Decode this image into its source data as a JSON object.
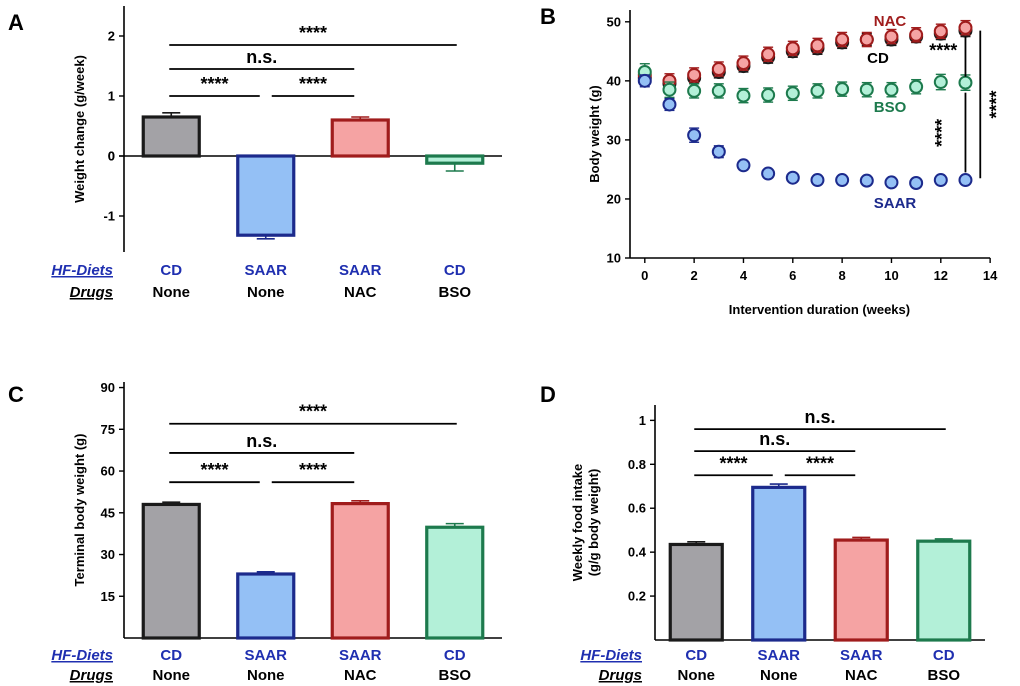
{
  "colors": {
    "CD": {
      "fill": "#a3a2a6",
      "stroke": "#1a1a1a"
    },
    "SAAR": {
      "fill": "#94c0f5",
      "stroke": "#1c2a8c"
    },
    "NAC": {
      "fill": "#f5a3a3",
      "stroke": "#a01c1c"
    },
    "BSO": {
      "fill": "#b3f0d8",
      "stroke": "#1d7a4d"
    },
    "diet_label": "#1f2fb0",
    "label_blue": "#1f2fb0"
  },
  "row_labels": {
    "diets": "HF-Diets",
    "drugs": "Drugs"
  },
  "chart_data": [
    {
      "panel": "A",
      "type": "bar",
      "ylabel": "Weight change (g/week)",
      "ylim": [
        -1.6,
        2.5
      ],
      "yticks": [
        -1,
        0,
        1,
        2
      ],
      "categories": [
        {
          "diet": "CD",
          "drug": "None"
        },
        {
          "diet": "SAAR",
          "drug": "None"
        },
        {
          "diet": "SAAR",
          "drug": "NAC"
        },
        {
          "diet": "CD",
          "drug": "BSO"
        }
      ],
      "values": [
        0.65,
        -1.32,
        0.6,
        -0.12
      ],
      "errors": [
        0.07,
        0.06,
        0.05,
        0.13
      ],
      "groups": [
        "CD",
        "SAAR",
        "NAC",
        "BSO"
      ],
      "significance": [
        {
          "from": 0,
          "to": 3,
          "label": "****",
          "y": 1.85
        },
        {
          "from": 0,
          "to": 2,
          "label": "n.s.",
          "y": 1.45
        },
        {
          "from": 0,
          "to": 1,
          "label": "****",
          "y": 1.0
        },
        {
          "from": 1,
          "to": 2,
          "label": "****",
          "y": 1.0
        }
      ]
    },
    {
      "panel": "B",
      "type": "scatter",
      "xlabel": "Intervention duration (weeks)",
      "ylabel": "Body weight (g)",
      "xlim": [
        -0.6,
        14.4
      ],
      "ylim": [
        10,
        52
      ],
      "xticks": [
        0,
        2,
        4,
        6,
        8,
        10,
        12,
        14
      ],
      "yticks": [
        10,
        20,
        30,
        40,
        50
      ],
      "series": [
        {
          "name": "CD",
          "group": "CD",
          "x": [
            0,
            1,
            2,
            3,
            4,
            5,
            6,
            7,
            8,
            9,
            10,
            11,
            12,
            13
          ],
          "y": [
            40.5,
            39.5,
            40.5,
            41.5,
            42.5,
            44.0,
            45.0,
            45.5,
            46.5,
            47.0,
            47.0,
            47.5,
            48.0,
            48.5
          ],
          "err": [
            1.0,
            1.0,
            1.0,
            1.0,
            1.0,
            1.0,
            1.0,
            1.0,
            1.0,
            1.0,
            1.0,
            1.0,
            1.0,
            1.0
          ]
        },
        {
          "name": "NAC",
          "group": "NAC",
          "x": [
            0,
            1,
            2,
            3,
            4,
            5,
            6,
            7,
            8,
            9,
            10,
            11,
            12,
            13
          ],
          "y": [
            41.0,
            40.0,
            41.0,
            42.0,
            43.0,
            44.5,
            45.5,
            46.0,
            47.0,
            47.0,
            47.5,
            47.8,
            48.4,
            49.0
          ],
          "err": [
            1.2,
            1.2,
            1.2,
            1.2,
            1.2,
            1.2,
            1.2,
            1.2,
            1.2,
            1.2,
            1.2,
            1.2,
            1.2,
            1.2
          ]
        },
        {
          "name": "BSO",
          "group": "BSO",
          "x": [
            0,
            1,
            2,
            3,
            4,
            5,
            6,
            7,
            8,
            9,
            10,
            11,
            12,
            13
          ],
          "y": [
            41.5,
            38.5,
            38.3,
            38.3,
            37.5,
            37.6,
            37.9,
            38.3,
            38.6,
            38.5,
            38.5,
            39.0,
            39.8,
            39.7
          ],
          "err": [
            1.4,
            1.3,
            1.2,
            1.2,
            1.2,
            1.2,
            1.2,
            1.2,
            1.2,
            1.2,
            1.2,
            1.2,
            1.3,
            1.3
          ]
        },
        {
          "name": "SAAR",
          "group": "SAAR",
          "x": [
            0,
            1,
            2,
            3,
            4,
            5,
            6,
            7,
            8,
            9,
            10,
            11,
            12,
            13
          ],
          "y": [
            40.0,
            36.0,
            30.8,
            28.0,
            25.7,
            24.3,
            23.6,
            23.2,
            23.2,
            23.1,
            22.8,
            22.7,
            23.2,
            23.2
          ],
          "err": [
            1.0,
            1.0,
            1.2,
            1.0,
            0.7,
            0.5,
            0.5,
            0.5,
            0.5,
            0.5,
            0.5,
            0.5,
            0.5,
            0.5
          ]
        }
      ],
      "series_label_text": {
        "NAC": "NAC",
        "CD": "CD",
        "BSO": "BSO",
        "SAAR": "SAAR"
      },
      "significance": [
        {
          "x": 13.0,
          "y_from": 47.5,
          "y_to": 40.7,
          "label": "****",
          "label_side": "left",
          "label_x": 12.1,
          "label_y": 44.1,
          "rotate": 0
        },
        {
          "x": 13.0,
          "y_from": 38.0,
          "y_to": 24.5,
          "label": "****",
          "label_side": "left",
          "label_x": 12.3,
          "label_y": 31.2,
          "rotate": -90
        },
        {
          "x": 13.6,
          "y_from": 48.5,
          "y_to": 23.5,
          "label": "****",
          "label_side": "right",
          "label_x": 14.5,
          "label_y": 36,
          "rotate": -90
        }
      ]
    },
    {
      "panel": "C",
      "type": "bar",
      "ylabel": "Terminal body weight (g)",
      "ylim": [
        0,
        92
      ],
      "yticks": [
        15,
        30,
        45,
        60,
        75,
        90
      ],
      "categories": [
        {
          "diet": "CD",
          "drug": "None"
        },
        {
          "diet": "SAAR",
          "drug": "None"
        },
        {
          "diet": "SAAR",
          "drug": "NAC"
        },
        {
          "diet": "CD",
          "drug": "BSO"
        }
      ],
      "values": [
        48.0,
        23.0,
        48.3,
        39.8
      ],
      "errors": [
        0.8,
        0.8,
        1.0,
        1.3
      ],
      "groups": [
        "CD",
        "SAAR",
        "NAC",
        "BSO"
      ],
      "significance": [
        {
          "from": 0,
          "to": 3,
          "label": "****",
          "y": 77
        },
        {
          "from": 0,
          "to": 2,
          "label": "n.s.",
          "y": 66.5
        },
        {
          "from": 0,
          "to": 1,
          "label": "****",
          "y": 56
        },
        {
          "from": 1,
          "to": 2,
          "label": "****",
          "y": 56
        }
      ]
    },
    {
      "panel": "D",
      "type": "bar",
      "ylabel": "Weekly food intake\n(g/g body weight)",
      "ylim": [
        0,
        1.07
      ],
      "yticks": [
        0.2,
        0.4,
        0.6,
        0.8,
        1.0
      ],
      "categories": [
        {
          "diet": "CD",
          "drug": "None"
        },
        {
          "diet": "SAAR",
          "drug": "None"
        },
        {
          "diet": "SAAR",
          "drug": "NAC"
        },
        {
          "diet": "CD",
          "drug": "BSO"
        }
      ],
      "values": [
        0.435,
        0.695,
        0.455,
        0.45
      ],
      "errors": [
        0.012,
        0.015,
        0.012,
        0.01
      ],
      "groups": [
        "CD",
        "SAAR",
        "NAC",
        "BSO"
      ],
      "significance": [
        {
          "from": 0,
          "to": 3,
          "label": "n.s.",
          "y": 0.96
        },
        {
          "from": 0,
          "to": 2,
          "label": "n.s.",
          "y": 0.86
        },
        {
          "from": 0,
          "to": 1,
          "label": "****",
          "y": 0.75
        },
        {
          "from": 1,
          "to": 2,
          "label": "****",
          "y": 0.75
        }
      ]
    }
  ]
}
